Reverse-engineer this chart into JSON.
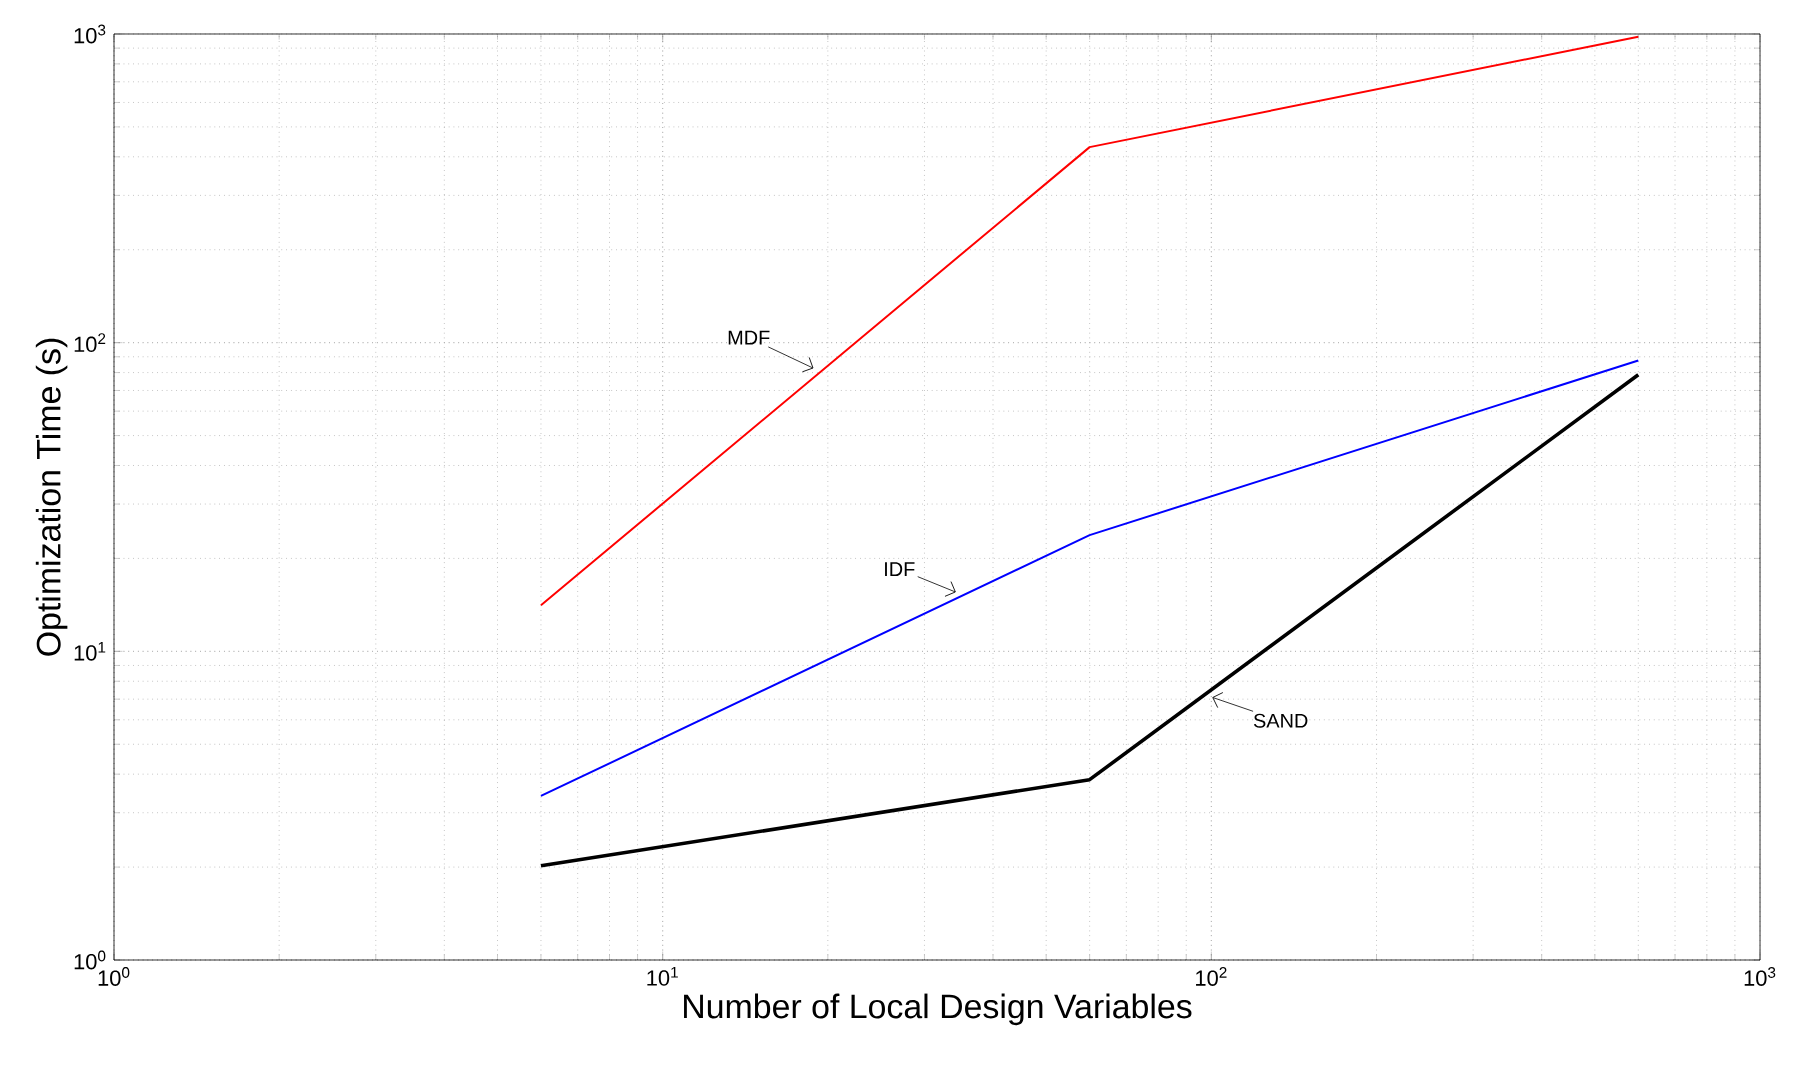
{
  "chart_data": {
    "type": "line",
    "xlabel": "Number of Local Design Variables",
    "ylabel": "Optimization Time (s)",
    "x": [
      6,
      60,
      600
    ],
    "series": [
      {
        "name": "MDF",
        "color": "#ff0000",
        "values": [
          14.1,
          430,
          980
        ]
      },
      {
        "name": "IDF",
        "color": "#0000ff",
        "values": [
          3.4,
          23.8,
          87.5
        ]
      },
      {
        "name": "SAND",
        "color": "#000000",
        "values": [
          2.02,
          3.84,
          78.7
        ]
      }
    ],
    "log": "xy",
    "grid": true,
    "marker": "none",
    "line_style": "solid",
    "xlim": [
      1,
      1000
    ],
    "ylim": [
      1,
      1000
    ],
    "xticks": [
      {
        "value": 1,
        "label": "10$^{0}$"
      },
      {
        "value": 10,
        "label": "10$^{1}$"
      },
      {
        "value": 100,
        "label": "10$^{2}$"
      },
      {
        "value": 1000,
        "label": "10$^{3}$"
      }
    ],
    "yticks": [
      {
        "value": 1,
        "label": "10$^{0}$"
      },
      {
        "value": 10,
        "label": "10$^{1}$"
      },
      {
        "value": 100,
        "label": "10$^{2}$"
      },
      {
        "value": 1000,
        "label": "10$^{3}$"
      }
    ]
  }
}
